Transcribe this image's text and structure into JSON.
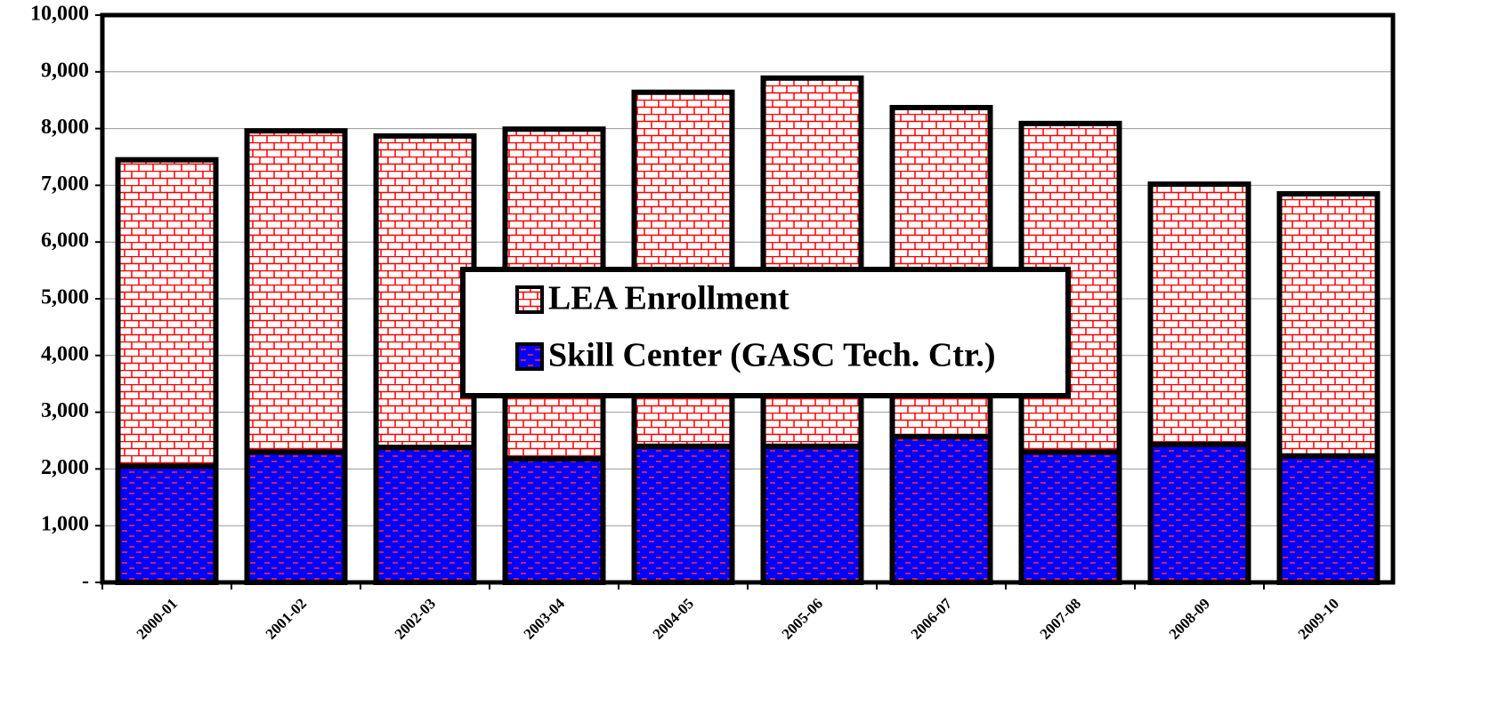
{
  "chart_data": {
    "type": "stacked_bar",
    "categories": [
      "2000-01",
      "2001-02",
      "2002-03",
      "2003-04",
      "2004-05",
      "2005-06",
      "2006-07",
      "2007-08",
      "2008-09",
      "2009-10"
    ],
    "series": [
      {
        "name": "LEA Enrollment",
        "color": "#ff0000",
        "values": [
          5400,
          5660,
          5490,
          5810,
          6240,
          6490,
          5800,
          5790,
          4590,
          4620
        ]
      },
      {
        "name": "Skill Center (GASC Tech. Ctr.)",
        "color": "#0000ff",
        "values": [
          2050,
          2300,
          2380,
          2180,
          2400,
          2400,
          2570,
          2300,
          2430,
          2230
        ]
      }
    ],
    "ylim": [
      0,
      10000
    ],
    "yticks": [
      {
        "value": 0,
        "label": "-"
      },
      {
        "value": 1000,
        "label": "1,000"
      },
      {
        "value": 2000,
        "label": "2,000"
      },
      {
        "value": 3000,
        "label": "3,000"
      },
      {
        "value": 4000,
        "label": "4,000"
      },
      {
        "value": 5000,
        "label": "5,000"
      },
      {
        "value": 6000,
        "label": "6,000"
      },
      {
        "value": 7000,
        "label": "7,000"
      },
      {
        "value": 8000,
        "label": "8,000"
      },
      {
        "value": 9000,
        "label": "9,000"
      },
      {
        "value": 10000,
        "label": "10,000"
      }
    ],
    "grid": true
  }
}
